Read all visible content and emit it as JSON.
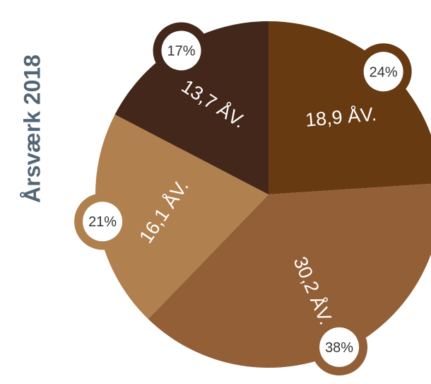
{
  "chart_data": {
    "type": "pie",
    "title": "Årsværk 2018",
    "slices": [
      {
        "label": "18,9 ÅV.",
        "value": 18.9,
        "percent_label": "24%",
        "color": "#673a12"
      },
      {
        "label": "30,2 ÅV.",
        "value": 30.2,
        "percent_label": "38%",
        "color": "#935f37"
      },
      {
        "label": "16,1 ÅV.",
        "value": 16.1,
        "percent_label": "21%",
        "color": "#b0814e"
      },
      {
        "label": "13,7 ÅV.",
        "value": 13.7,
        "percent_label": "17%",
        "color": "#43271b"
      }
    ],
    "label_color": "#ffffff",
    "percent_text_color": "#333333"
  }
}
